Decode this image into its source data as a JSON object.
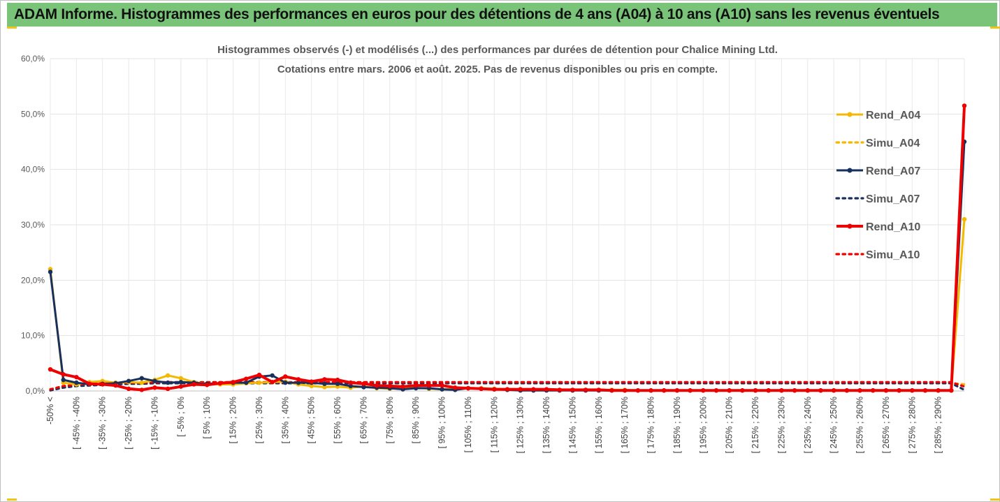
{
  "banner": {
    "title": "ADAM Informe. Histogrammes des performances en euros pour des détentions de 4 ans (A04) à 10 ans (A10) sans les revenus éventuels"
  },
  "colors": {
    "banner_bg": "#79c479",
    "a04": "#f5b800",
    "a07": "#17305e",
    "a10": "#ee0000",
    "corner_accent": "#f0c419"
  },
  "chart_data": {
    "type": "line",
    "title": [
      "Histogrammes observés (-) et modélisés (...) des performances par durées de détention pour Chalice Mining Ltd.",
      "Cotations entre mars. 2006 et août. 2025. Pas de revenus disponibles ou pris en compte."
    ],
    "ylim": [
      0,
      60
    ],
    "y_ticks": [
      "0,0%",
      "10,0%",
      "20,0%",
      "30,0%",
      "40,0%",
      "50,0%",
      "60,0%"
    ],
    "y_tick_values": [
      0,
      10,
      20,
      30,
      40,
      50,
      60
    ],
    "grid": true,
    "legend_position": "right",
    "x_tick_labels": [
      "-50% <",
      "[ -45% ; -40%",
      "[ -35% ; -30%",
      "[ -25% ; -20%",
      "[ -15% ; -10%",
      "[ -5% ; 0%",
      "[ 5% ; 10%",
      "[ 15% ; 20%",
      "[ 25% ; 30%",
      "[ 35% ; 40%",
      "[ 45% ; 50%",
      "[ 55% ; 60%",
      "[ 65% ; 70%",
      "[ 75% ; 80%",
      "[ 85% ; 90%",
      "[ 95% ; 100%",
      "[ 105% ; 110%",
      "[ 115% ; 120%",
      "[ 125% ; 130%",
      "[ 135% ; 140%",
      "[ 145% ; 150%",
      "[ 155% ; 160%",
      "[ 165% ; 170%",
      "[ 175% ; 180%",
      "[ 185% ; 190%",
      "[ 195% ; 200%",
      "[ 205% ; 210%",
      "[ 215% ; 220%",
      "[ 225% ; 230%",
      "[ 235% ; 240%",
      "[ 245% ; 250%",
      "[ 255% ; 260%",
      "[ 265% ; 270%",
      "[ 275% ; 280%",
      "[ 285% ; 290%"
    ],
    "series": [
      {
        "name": "Rend_A04",
        "style": "solid",
        "color": "#f5b800",
        "values": [
          22.0,
          1.5,
          1.2,
          1.6,
          1.8,
          1.5,
          1.6,
          1.5,
          2.0,
          2.8,
          2.3,
          1.6,
          1.3,
          1.2,
          1.2,
          1.4,
          1.5,
          1.6,
          1.7,
          1.2,
          0.9,
          0.7,
          0.8,
          0.6,
          0.8,
          0.5,
          0.4,
          0.5,
          0.6,
          0.4,
          0.3,
          0.4,
          0.5,
          0.5,
          0.4,
          0.3,
          0.3,
          0.2,
          0.2,
          0.2,
          0.2,
          0.2,
          0.2,
          0.2,
          0.2,
          0.1,
          0.1,
          0.1,
          0.1,
          0.1,
          0.1,
          0.1,
          0.1,
          0.1,
          0.1,
          0.1,
          0.1,
          0.1,
          0.1,
          0.1,
          0.1,
          0.1,
          0.1,
          0.1,
          0.1,
          0.1,
          0.1,
          0.1,
          0.1,
          0.1,
          31.0
        ]
      },
      {
        "name": "Simu_A04",
        "style": "dotted",
        "color": "#f5b800",
        "values": [
          0.2,
          0.8,
          1.0,
          1.1,
          1.2,
          1.3,
          1.3,
          1.4,
          1.4,
          1.4,
          1.4,
          1.4,
          1.4,
          1.4,
          1.4,
          1.4,
          1.4,
          1.4,
          1.4,
          1.4,
          1.4,
          1.4,
          1.4,
          1.4,
          1.4,
          1.4,
          1.4,
          1.4,
          1.4,
          1.4,
          1.4,
          1.4,
          1.4,
          1.4,
          1.4,
          1.4,
          1.4,
          1.4,
          1.4,
          1.4,
          1.4,
          1.4,
          1.4,
          1.4,
          1.4,
          1.4,
          1.4,
          1.4,
          1.4,
          1.4,
          1.4,
          1.4,
          1.4,
          1.4,
          1.4,
          1.4,
          1.4,
          1.4,
          1.4,
          1.4,
          1.4,
          1.4,
          1.4,
          1.4,
          1.4,
          1.4,
          1.4,
          1.4,
          1.4,
          1.4,
          1.2
        ]
      },
      {
        "name": "Rend_A07",
        "style": "solid",
        "color": "#17305e",
        "values": [
          21.5,
          2.0,
          1.5,
          1.2,
          1.3,
          1.4,
          1.8,
          2.3,
          1.8,
          1.5,
          1.6,
          1.5,
          1.3,
          1.4,
          1.5,
          1.5,
          2.6,
          2.8,
          1.5,
          1.5,
          1.5,
          1.3,
          1.3,
          0.9,
          0.7,
          0.6,
          0.5,
          0.3,
          0.5,
          0.5,
          0.3,
          0.2,
          0.5,
          0.4,
          0.3,
          0.2,
          0.1,
          0.1,
          0.1,
          0.1,
          0.1,
          0.1,
          0.1,
          0.1,
          0.1,
          0.1,
          0.1,
          0.1,
          0.1,
          0.1,
          0.1,
          0.1,
          0.1,
          0.1,
          0.1,
          0.1,
          0.1,
          0.1,
          0.1,
          0.1,
          0.1,
          0.1,
          0.1,
          0.1,
          0.1,
          0.1,
          0.1,
          0.1,
          0.1,
          0.1,
          45.0
        ]
      },
      {
        "name": "Simu_A07",
        "style": "dotted",
        "color": "#17305e",
        "values": [
          0.1,
          0.6,
          0.9,
          1.0,
          1.1,
          1.2,
          1.3,
          1.3,
          1.4,
          1.4,
          1.4,
          1.4,
          1.4,
          1.4,
          1.4,
          1.4,
          1.4,
          1.4,
          1.4,
          1.4,
          1.4,
          1.4,
          1.4,
          1.4,
          1.4,
          1.4,
          1.4,
          1.4,
          1.4,
          1.4,
          1.4,
          1.4,
          1.4,
          1.4,
          1.4,
          1.4,
          1.4,
          1.4,
          1.4,
          1.4,
          1.4,
          1.4,
          1.4,
          1.4,
          1.4,
          1.4,
          1.4,
          1.4,
          1.4,
          1.4,
          1.4,
          1.4,
          1.4,
          1.4,
          1.4,
          1.4,
          1.4,
          1.4,
          1.4,
          1.4,
          1.4,
          1.4,
          1.4,
          1.4,
          1.4,
          1.4,
          1.4,
          1.4,
          1.4,
          1.4,
          0.2
        ]
      },
      {
        "name": "Rend_A10",
        "style": "solid",
        "color": "#ee0000",
        "values": [
          3.9,
          3.0,
          2.5,
          1.3,
          1.2,
          1.0,
          0.4,
          0.2,
          0.6,
          0.4,
          0.8,
          1.2,
          1.1,
          1.4,
          1.6,
          2.2,
          2.9,
          1.6,
          2.6,
          2.1,
          1.7,
          2.1,
          2.0,
          1.5,
          1.3,
          1.0,
          0.9,
          0.8,
          1.0,
          1.0,
          1.0,
          0.6,
          0.5,
          0.4,
          0.3,
          0.3,
          0.3,
          0.3,
          0.3,
          0.2,
          0.2,
          0.2,
          0.2,
          0.1,
          0.1,
          0.1,
          0.1,
          0.1,
          0.1,
          0.1,
          0.1,
          0.1,
          0.1,
          0.1,
          0.1,
          0.1,
          0.1,
          0.1,
          0.1,
          0.1,
          0.1,
          0.1,
          0.1,
          0.1,
          0.1,
          0.1,
          0.1,
          0.1,
          0.1,
          0.1,
          51.5
        ]
      },
      {
        "name": "Simu_A10",
        "style": "dotted",
        "color": "#ee0000",
        "values": [
          0.3,
          0.9,
          1.1,
          1.3,
          1.4,
          1.5,
          1.5,
          1.5,
          1.6,
          1.6,
          1.6,
          1.6,
          1.6,
          1.6,
          1.6,
          1.6,
          1.6,
          1.6,
          1.6,
          1.6,
          1.6,
          1.6,
          1.6,
          1.6,
          1.6,
          1.6,
          1.6,
          1.6,
          1.6,
          1.6,
          1.6,
          1.6,
          1.6,
          1.6,
          1.6,
          1.6,
          1.6,
          1.6,
          1.6,
          1.6,
          1.6,
          1.6,
          1.6,
          1.6,
          1.6,
          1.6,
          1.6,
          1.6,
          1.6,
          1.6,
          1.6,
          1.6,
          1.6,
          1.6,
          1.6,
          1.6,
          1.6,
          1.6,
          1.6,
          1.6,
          1.6,
          1.6,
          1.6,
          1.6,
          1.6,
          1.6,
          1.6,
          1.6,
          1.6,
          1.6,
          0.8
        ]
      }
    ]
  }
}
